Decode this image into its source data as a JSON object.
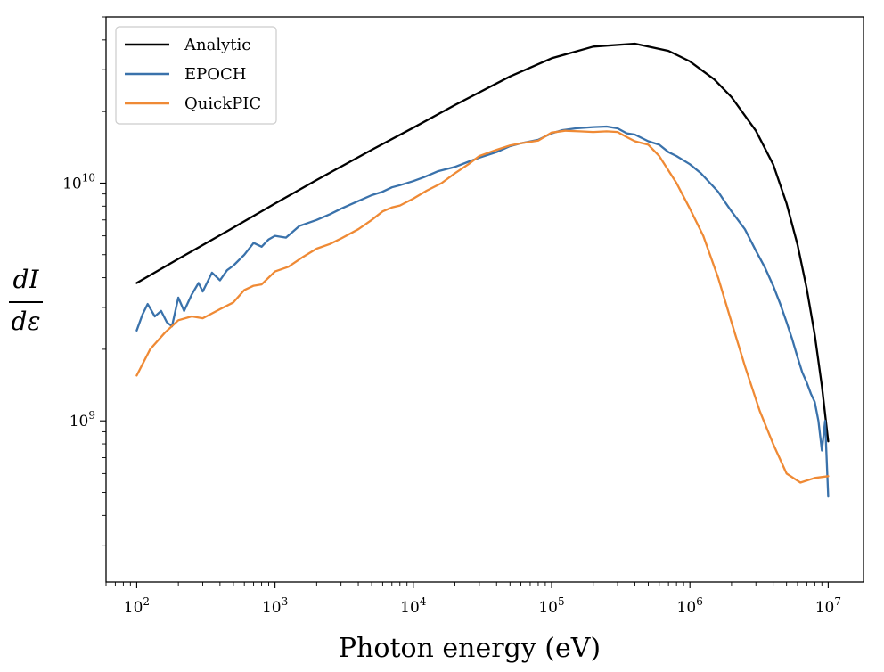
{
  "chart_data": {
    "type": "line",
    "title": "",
    "xlabel": "Photon energy (eV)",
    "ylabel": {
      "numerator": "dI",
      "denominator": "dε"
    },
    "xscale": "log",
    "yscale": "log",
    "xlim": [
      60,
      18000000
    ],
    "ylim": [
      210000000,
      50000000000
    ],
    "x_ticks": [
      {
        "value": 100,
        "base": "10",
        "exp": "2"
      },
      {
        "value": 1000,
        "base": "10",
        "exp": "3"
      },
      {
        "value": 10000,
        "base": "10",
        "exp": "4"
      },
      {
        "value": 100000,
        "base": "10",
        "exp": "5"
      },
      {
        "value": 1000000,
        "base": "10",
        "exp": "6"
      },
      {
        "value": 10000000,
        "base": "10",
        "exp": "7"
      }
    ],
    "y_ticks": [
      {
        "value": 1000000000,
        "base": "10",
        "exp": "9"
      },
      {
        "value": 10000000000,
        "base": "10",
        "exp": "10"
      }
    ],
    "legend_position": "top-left",
    "series": [
      {
        "name": "Analytic",
        "color": "#000000",
        "x": [
          100,
          200,
          500,
          1000,
          2000,
          5000,
          10000,
          20000,
          50000,
          100000,
          200000,
          400000,
          700000,
          1000000,
          1500000,
          2000000,
          3000000,
          4000000,
          5000000,
          6000000,
          7000000,
          8000000,
          9000000,
          10000000
        ],
        "y": [
          3800000000.0,
          4800000000.0,
          6500000000.0,
          8200000000.0,
          10300000000.0,
          13800000000.0,
          17100000000.0,
          21300000000.0,
          28100000000.0,
          33500000000.0,
          37500000000.0,
          38600000000.0,
          36000000000.0,
          32500000000.0,
          27300000000.0,
          23000000000.0,
          16600000000.0,
          12000000000.0,
          8200000000.0,
          5500000000.0,
          3600000000.0,
          2300000000.0,
          1400000000.0,
          820000000.0
        ]
      },
      {
        "name": "EPOCH",
        "color": "#3a72ab",
        "x": [
          100,
          110,
          120,
          135,
          150,
          165,
          180,
          200,
          220,
          250,
          280,
          300,
          350,
          400,
          450,
          500,
          600,
          700,
          800,
          900,
          1000,
          1200,
          1500,
          2000,
          2500,
          3000,
          4000,
          5000,
          6000,
          7000,
          8000,
          10000,
          12000,
          15000,
          20000,
          25000,
          30000,
          40000,
          50000,
          60000,
          80000,
          100000,
          120000,
          150000,
          200000,
          250000,
          300000,
          350000,
          400000,
          500000,
          600000,
          700000,
          800000,
          1000000,
          1200000,
          1400000,
          1600000,
          1800000,
          2000000,
          2500000,
          3000000,
          3500000,
          4000000,
          4500000,
          5000000,
          5500000,
          6000000,
          6500000,
          7000000,
          7500000,
          8000000,
          8500000,
          9000000,
          9500000,
          10000000
        ],
        "y": [
          2400000000.0,
          2800000000.0,
          3100000000.0,
          2750000000.0,
          2900000000.0,
          2600000000.0,
          2500000000.0,
          3300000000.0,
          2900000000.0,
          3400000000.0,
          3800000000.0,
          3500000000.0,
          4200000000.0,
          3900000000.0,
          4300000000.0,
          4500000000.0,
          5000000000.0,
          5600000000.0,
          5400000000.0,
          5800000000.0,
          6000000000.0,
          5900000000.0,
          6600000000.0,
          7000000000.0,
          7400000000.0,
          7800000000.0,
          8400000000.0,
          8900000000.0,
          9200000000.0,
          9600000000.0,
          9800000000.0,
          10200000000.0,
          10600000000.0,
          11200000000.0,
          11700000000.0,
          12300000000.0,
          12800000000.0,
          13500000000.0,
          14300000000.0,
          14700000000.0,
          15200000000.0,
          16200000000.0,
          16700000000.0,
          17000000000.0,
          17200000000.0,
          17300000000.0,
          17000000000.0,
          16200000000.0,
          16000000000.0,
          15000000000.0,
          14500000000.0,
          13500000000.0,
          13000000000.0,
          12000000000.0,
          11000000000.0,
          10000000000.0,
          9200000000.0,
          8300000000.0,
          7600000000.0,
          6400000000.0,
          5200000000.0,
          4400000000.0,
          3700000000.0,
          3100000000.0,
          2600000000.0,
          2200000000.0,
          1850000000.0,
          1600000000.0,
          1450000000.0,
          1300000000.0,
          1200000000.0,
          1000000000.0,
          750000000.0,
          1000000000.0,
          480000000.0
        ]
      },
      {
        "name": "QuickPIC",
        "color": "#ef8a35",
        "x": [
          100,
          125,
          160,
          200,
          250,
          300,
          400,
          500,
          600,
          700,
          800,
          1000,
          1250,
          1600,
          2000,
          2500,
          3000,
          4000,
          5000,
          6000,
          7000,
          8000,
          10000,
          12500,
          16000,
          20000,
          25000,
          30000,
          40000,
          50000,
          60000,
          80000,
          100000,
          125000,
          160000,
          200000,
          250000,
          300000,
          350000,
          400000,
          500000,
          600000,
          800000,
          1000000,
          1250000,
          1600000,
          2000000,
          2500000,
          3200000,
          4000000,
          5000000,
          6300000,
          8000000,
          10000000
        ],
        "y": [
          1550000000.0,
          2000000000.0,
          2350000000.0,
          2650000000.0,
          2750000000.0,
          2700000000.0,
          2950000000.0,
          3150000000.0,
          3550000000.0,
          3700000000.0,
          3750000000.0,
          4250000000.0,
          4450000000.0,
          4900000000.0,
          5300000000.0,
          5550000000.0,
          5850000000.0,
          6400000000.0,
          7000000000.0,
          7600000000.0,
          7900000000.0,
          8050000000.0,
          8600000000.0,
          9300000000.0,
          10000000000.0,
          11000000000.0,
          12000000000.0,
          13000000000.0,
          13800000000.0,
          14400000000.0,
          14700000000.0,
          15100000000.0,
          16300000000.0,
          16600000000.0,
          16500000000.0,
          16400000000.0,
          16500000000.0,
          16400000000.0,
          15600000000.0,
          15000000000.0,
          14500000000.0,
          13000000000.0,
          10000000000.0,
          7800000000.0,
          6000000000.0,
          4000000000.0,
          2600000000.0,
          1700000000.0,
          1100000000.0,
          800000000.0,
          600000000.0,
          550000000.0,
          575000000.0,
          585000000.0
        ]
      }
    ]
  }
}
